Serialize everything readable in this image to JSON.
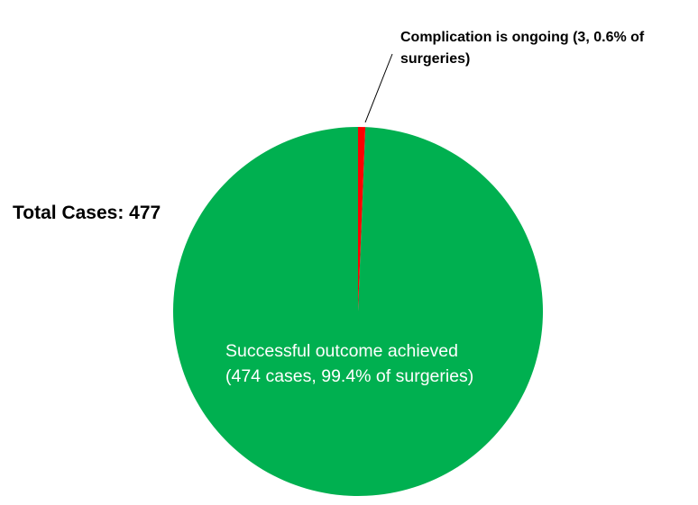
{
  "chart_data": {
    "type": "pie",
    "total_label": "Total Cases: 477",
    "slices": [
      {
        "label_lines": [
          "Successful outcome achieved",
          "(474 cases, 99.4% of surgeries)"
        ],
        "value": 474,
        "percent": 99.4,
        "color": "#00B050"
      },
      {
        "label_lines": [
          "Complication is ongoing (3, 0.6% of",
          "surgeries)"
        ],
        "value": 3,
        "percent": 0.6,
        "color": "#FF0000"
      }
    ]
  }
}
